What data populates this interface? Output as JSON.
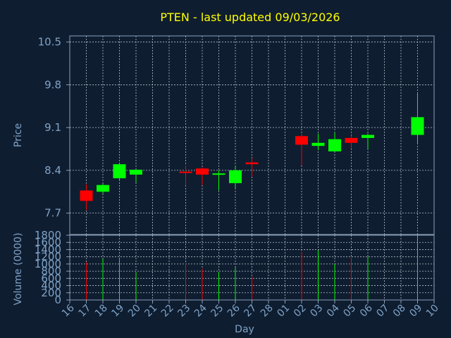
{
  "chart_data": {
    "type": "candlestick",
    "title": "PTEN - last updated 09/03/2026",
    "price_panel": {
      "ylabel": "Price",
      "ylim": [
        7.35,
        10.6
      ],
      "yticks": [
        "7.7",
        "8.4",
        "9.1",
        "9.8",
        "10.5"
      ],
      "ytick_values": [
        7.7,
        8.4,
        9.1,
        9.8,
        10.5
      ]
    },
    "volume_panel": {
      "ylabel": "Volume (0000)",
      "ylim": [
        0,
        1800
      ],
      "yticks": [
        "0",
        "200",
        "400",
        "600",
        "800",
        "1000",
        "1200",
        "1400",
        "1600",
        "1800"
      ],
      "ytick_values": [
        0,
        200,
        400,
        600,
        800,
        1000,
        1200,
        1400,
        1600,
        1800
      ]
    },
    "xlabel": "Day",
    "x_ticks": [
      "16",
      "17",
      "18",
      "19",
      "20",
      "21",
      "22",
      "23",
      "24",
      "25",
      "26",
      "27",
      "28",
      "01",
      "02",
      "03",
      "04",
      "05",
      "06",
      "07",
      "08",
      "09",
      "10"
    ],
    "candles": [
      {
        "day": "17",
        "open": 8.07,
        "high": 8.17,
        "low": 7.75,
        "close": 7.9,
        "volume": 1050
      },
      {
        "day": "18",
        "open": 8.05,
        "high": 8.18,
        "low": 8.02,
        "close": 8.16,
        "volume": 1150
      },
      {
        "day": "19",
        "open": 8.27,
        "high": 8.51,
        "low": 8.24,
        "close": 8.5,
        "volume": 1130
      },
      {
        "day": "20",
        "open": 8.33,
        "high": 8.42,
        "low": 8.2,
        "close": 8.41,
        "volume": 780
      },
      {
        "day": "23",
        "open": 8.38,
        "high": 8.48,
        "low": 8.15,
        "close": 8.37,
        "volume": 1040
      },
      {
        "day": "24",
        "open": 8.43,
        "high": 8.45,
        "low": 8.16,
        "close": 8.33,
        "volume": 870
      },
      {
        "day": "25",
        "open": 8.33,
        "high": 8.4,
        "low": 8.07,
        "close": 8.35,
        "volume": 770
      },
      {
        "day": "26",
        "open": 8.19,
        "high": 8.48,
        "low": 8.1,
        "close": 8.4,
        "volume": 900
      },
      {
        "day": "27",
        "open": 8.53,
        "high": 8.6,
        "low": 8.3,
        "close": 8.5,
        "volume": 640
      },
      {
        "day": "02",
        "open": 8.96,
        "high": 8.98,
        "low": 8.48,
        "close": 8.82,
        "volume": 1340
      },
      {
        "day": "03",
        "open": 8.8,
        "high": 9.0,
        "low": 8.73,
        "close": 8.85,
        "volume": 1380
      },
      {
        "day": "04",
        "open": 8.71,
        "high": 9.02,
        "low": 8.71,
        "close": 8.91,
        "volume": 1000
      },
      {
        "day": "05",
        "open": 8.93,
        "high": 8.97,
        "low": 8.75,
        "close": 8.85,
        "volume": 1180
      },
      {
        "day": "06",
        "open": 8.93,
        "high": 9.0,
        "low": 8.75,
        "close": 8.98,
        "volume": 1200
      },
      {
        "day": "09",
        "open": 8.98,
        "high": 9.67,
        "low": 8.85,
        "close": 9.27,
        "volume": 1800
      }
    ],
    "grid": true,
    "colors": {
      "up": "#00ff00",
      "down": "#ff0000",
      "background": "#0f1d30",
      "axis_text": "#7ea3c7",
      "title": "#ffff00"
    }
  }
}
